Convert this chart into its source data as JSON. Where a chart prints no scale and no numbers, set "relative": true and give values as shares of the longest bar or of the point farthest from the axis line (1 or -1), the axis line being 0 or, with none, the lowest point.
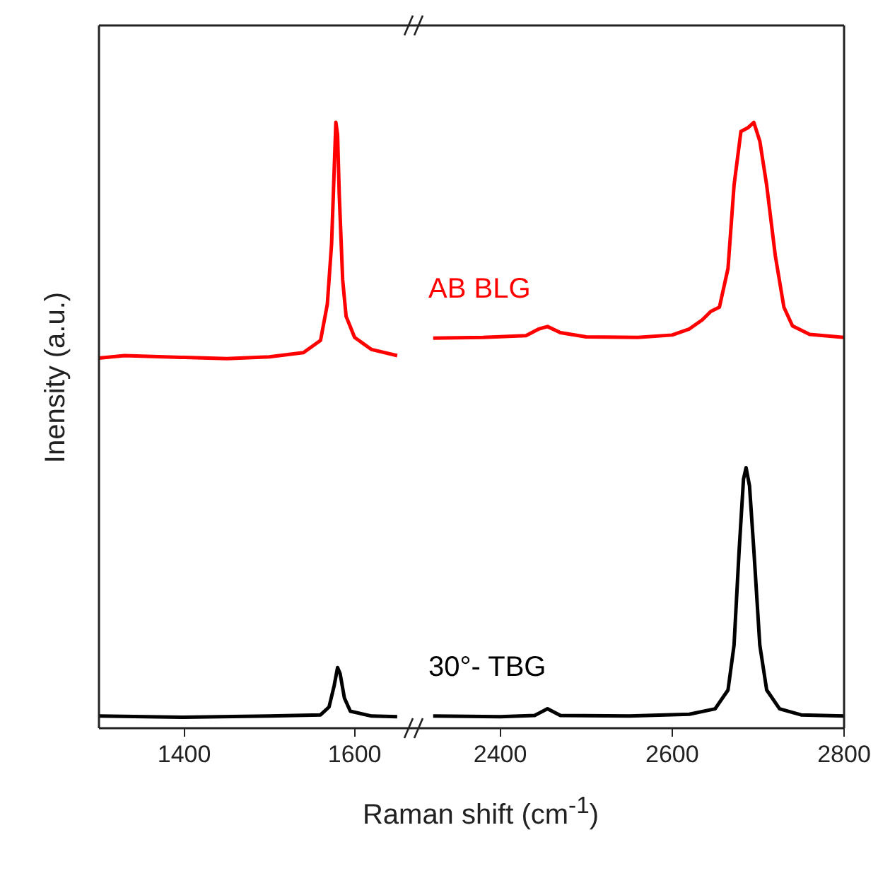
{
  "chart_data": [
    {
      "type": "line",
      "ylabel": "Inensity (a.u.)",
      "xlabel": "Raman shift (cm$^{-1}$)",
      "relative": true,
      "xlim": [
        1300,
        1670
      ],
      "xticks": [
        1400,
        1600
      ],
      "grid": false,
      "marker": "none",
      "tick_labels": "x",
      "series": [
        {
          "color": "#ff0000",
          "x": [
            1300,
            1330,
            1400,
            1450,
            1500,
            1540,
            1560,
            1568,
            1573,
            1576,
            1578,
            1580,
            1582,
            1586,
            1590,
            1600,
            1620,
            1650
          ],
          "values": [
            0.611,
            0.615,
            0.612,
            0.61,
            0.613,
            0.62,
            0.64,
            0.7,
            0.8,
            0.92,
            1.0,
            0.98,
            0.88,
            0.74,
            0.68,
            0.645,
            0.625,
            0.615
          ]
        },
        {
          "color": "#000000",
          "x": [
            1300,
            1400,
            1500,
            1560,
            1570,
            1576,
            1580,
            1583,
            1588,
            1595,
            1620,
            1650
          ],
          "values": [
            0.02,
            0.018,
            0.02,
            0.022,
            0.035,
            0.07,
            0.1,
            0.09,
            0.05,
            0.028,
            0.02,
            0.019
          ]
        }
      ]
    },
    {
      "type": "line",
      "relative": true,
      "xlim": [
        2300,
        2800
      ],
      "xticks": [
        2400,
        2600,
        2800
      ],
      "grid": false,
      "marker": "none",
      "tick_labels": "x",
      "series": [
        {
          "name": "AB BLG",
          "color": "#ff0000",
          "x": [
            2322,
            2380,
            2430,
            2445,
            2455,
            2470,
            2500,
            2560,
            2600,
            2620,
            2635,
            2645,
            2655,
            2665,
            2672,
            2680,
            2688,
            2695,
            2702,
            2710,
            2720,
            2730,
            2740,
            2760,
            2800
          ],
          "values": [
            0.644,
            0.645,
            0.648,
            0.659,
            0.663,
            0.653,
            0.646,
            0.645,
            0.649,
            0.659,
            0.674,
            0.688,
            0.695,
            0.759,
            0.896,
            0.985,
            0.991,
            1.0,
            0.969,
            0.896,
            0.78,
            0.695,
            0.664,
            0.65,
            0.645
          ]
        },
        {
          "name": "30°- TBG",
          "color": "#000000",
          "x": [
            2322,
            2400,
            2440,
            2455,
            2470,
            2550,
            2620,
            2650,
            2665,
            2672,
            2678,
            2683,
            2686,
            2690,
            2695,
            2702,
            2710,
            2725,
            2750,
            2800
          ],
          "values": [
            0.02,
            0.019,
            0.021,
            0.032,
            0.021,
            0.02,
            0.023,
            0.032,
            0.063,
            0.137,
            0.295,
            0.411,
            0.43,
            0.4,
            0.295,
            0.137,
            0.063,
            0.032,
            0.022,
            0.02
          ]
        }
      ]
    }
  ]
}
